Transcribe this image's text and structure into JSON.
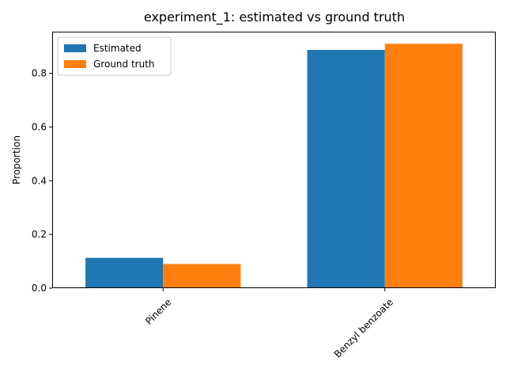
{
  "chart_data": {
    "type": "bar",
    "title": "experiment_1: estimated vs ground truth",
    "xlabel": "",
    "ylabel": "Proportion",
    "categories": [
      "Pinene",
      "Benzyl benzoate"
    ],
    "series": [
      {
        "name": "Estimated",
        "color": "#1f77b4",
        "values": [
          0.113,
          0.887
        ]
      },
      {
        "name": "Ground truth",
        "color": "#ff7f0e",
        "values": [
          0.09,
          0.91
        ]
      }
    ],
    "ylim": [
      0,
      0.955
    ],
    "yticks": [
      0.0,
      0.2,
      0.4,
      0.6,
      0.8
    ],
    "ytick_labels": [
      "0.0",
      "0.2",
      "0.4",
      "0.6",
      "0.8"
    ],
    "xtick_rotation_deg": 45,
    "grid": false,
    "legend_position": "upper-left"
  }
}
